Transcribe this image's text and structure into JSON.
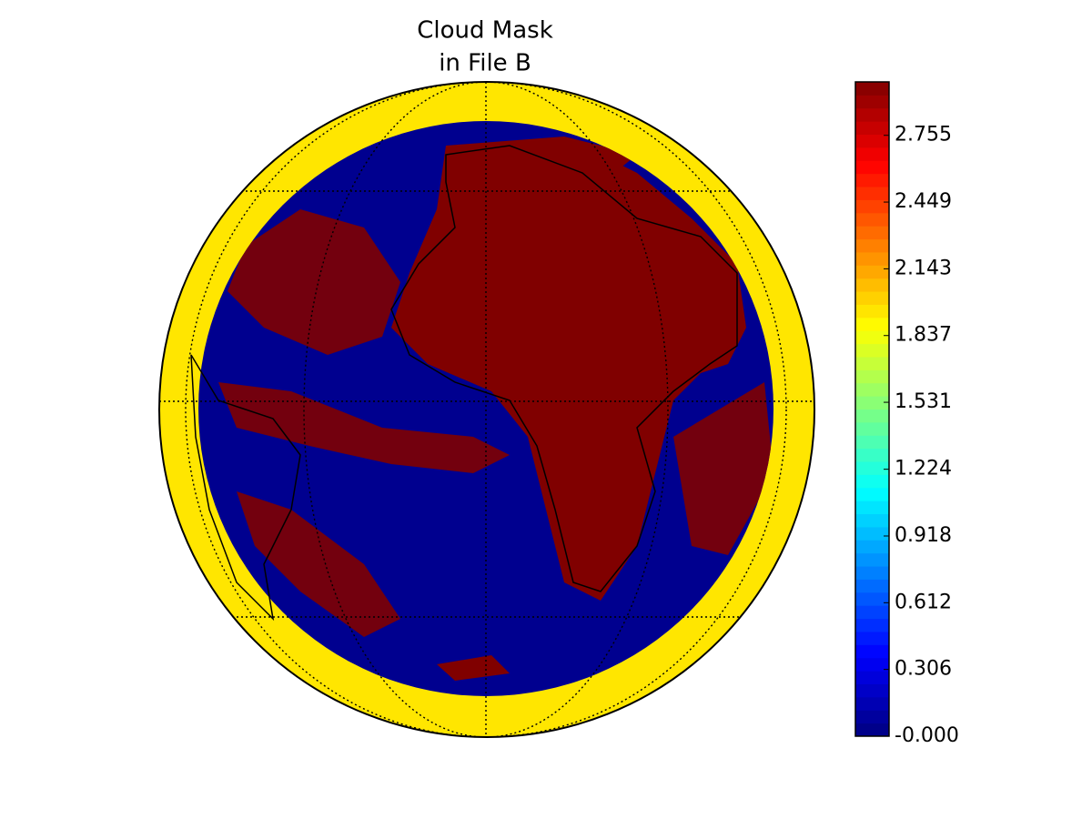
{
  "chart_data": {
    "type": "map",
    "title": [
      "Cloud Mask",
      "in File B"
    ],
    "colorbar": {
      "ylim": [
        0,
        3
      ],
      "yticks": [
        {
          "value": 0,
          "label": "-0.000"
        },
        0.306,
        0.612,
        0.918,
        1.224,
        1.531,
        1.837,
        2.143,
        2.449,
        2.755
      ]
    }
  }
}
